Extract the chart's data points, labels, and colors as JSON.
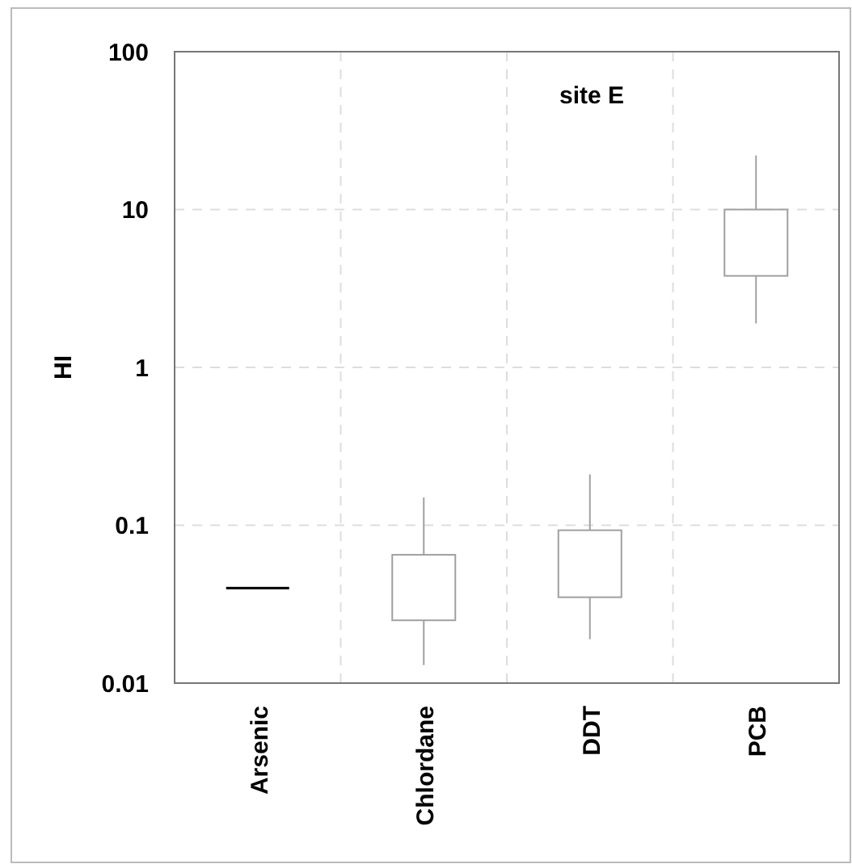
{
  "chart_data": {
    "type": "box",
    "title": "site E",
    "ylabel": "HI",
    "categories": [
      "Arsenic",
      "Chlordane",
      "DDT",
      "PCB"
    ],
    "log": "y",
    "ylim": [
      0.01,
      100
    ],
    "yticks": [
      0.01,
      0.1,
      1,
      10,
      100
    ],
    "grid": true,
    "series": [
      {
        "colors": [
          "#000000",
          "#a0a0a0",
          "#a0a0a0",
          "#a0a0a0"
        ],
        "boxes": [
          {
            "low": 0.04,
            "q1": 0.04,
            "median": 0.04,
            "q3": 0.04,
            "high": 0.04
          },
          {
            "low": 0.013,
            "q1": 0.025,
            "median": null,
            "q3": 0.065,
            "high": 0.15
          },
          {
            "low": 0.019,
            "q1": 0.035,
            "median": null,
            "q3": 0.093,
            "high": 0.21
          },
          {
            "low": 1.9,
            "q1": 3.8,
            "median": null,
            "q3": 10,
            "high": 22
          }
        ]
      }
    ]
  }
}
